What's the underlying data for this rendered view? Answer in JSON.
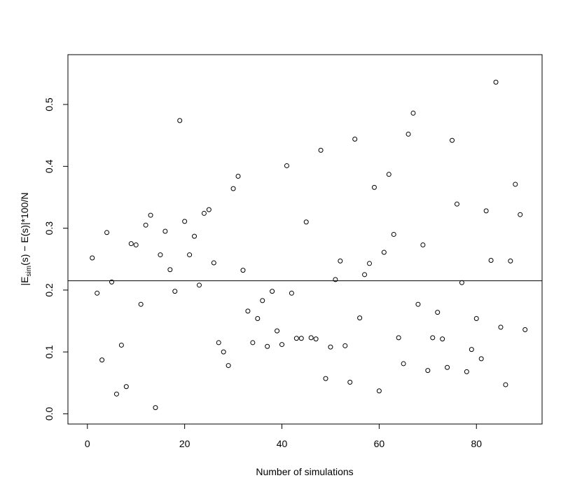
{
  "chart_data": {
    "type": "scatter",
    "xlabel": "Number of simulations",
    "ylabel": {
      "parts": [
        "|E",
        "sim",
        "(s) − E(s)|*100/N"
      ]
    },
    "xlim": [
      -4,
      93.5
    ],
    "ylim": [
      -0.0165,
      0.5805
    ],
    "xticks": [
      0,
      20,
      40,
      60,
      80
    ],
    "yticks": [
      0.0,
      0.1,
      0.2,
      0.3,
      0.4,
      0.5
    ],
    "ytick_labels": [
      "0.0",
      "0.1",
      "0.2",
      "0.3",
      "0.4",
      "0.5"
    ],
    "hline": 0.215,
    "marker": "open-circle",
    "x": [
      1,
      2,
      3,
      4,
      5,
      6,
      7,
      8,
      9,
      10,
      11,
      12,
      13,
      14,
      15,
      16,
      17,
      18,
      19,
      20,
      21,
      22,
      23,
      24,
      25,
      26,
      27,
      28,
      29,
      30,
      31,
      32,
      33,
      34,
      35,
      36,
      37,
      38,
      39,
      40,
      41,
      42,
      43,
      44,
      45,
      46,
      47,
      48,
      49,
      50,
      51,
      52,
      53,
      54,
      55,
      56,
      57,
      58,
      59,
      60,
      61,
      62,
      63,
      64,
      65,
      66,
      67,
      68,
      69,
      70,
      71,
      72,
      73,
      74,
      75,
      76,
      77,
      78,
      79,
      80,
      81,
      82,
      83,
      84,
      85,
      86,
      87,
      88,
      89,
      90
    ],
    "y": [
      0.252,
      0.195,
      0.087,
      0.293,
      0.213,
      0.032,
      0.111,
      0.044,
      0.275,
      0.273,
      0.177,
      0.305,
      0.321,
      0.01,
      0.257,
      0.295,
      0.233,
      0.198,
      0.474,
      0.311,
      0.257,
      0.287,
      0.208,
      0.324,
      0.33,
      0.244,
      0.115,
      0.1,
      0.078,
      0.364,
      0.384,
      0.232,
      0.166,
      0.115,
      0.154,
      0.183,
      0.109,
      0.198,
      0.134,
      0.112,
      0.401,
      0.195,
      0.122,
      0.122,
      0.31,
      0.123,
      0.121,
      0.426,
      0.057,
      0.108,
      0.217,
      0.247,
      0.11,
      0.051,
      0.444,
      0.155,
      0.225,
      0.243,
      0.366,
      0.037,
      0.261,
      0.387,
      0.29,
      0.123,
      0.081,
      0.452,
      0.486,
      0.177,
      0.273,
      0.07,
      0.123,
      0.164,
      0.121,
      0.075,
      0.442,
      0.339,
      0.212,
      0.068,
      0.104,
      0.154,
      0.089,
      0.328,
      0.248,
      0.536,
      0.14,
      0.047,
      0.247,
      0.371,
      0.322,
      0.136
    ]
  }
}
